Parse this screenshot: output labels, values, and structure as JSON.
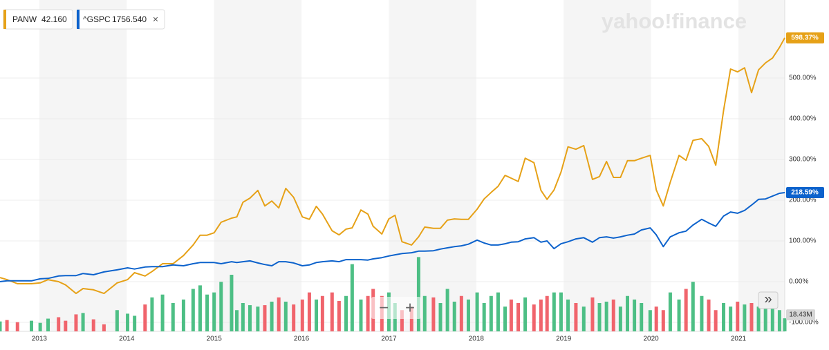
{
  "chart_data": {
    "type": "line",
    "watermark": "yahoo!finance",
    "x": [
      2012.55,
      2012.63,
      2012.75,
      2012.91,
      2013.01,
      2013.1,
      2013.22,
      2013.3,
      2013.42,
      2013.5,
      2013.62,
      2013.74,
      2013.89,
      2014.01,
      2014.09,
      2014.21,
      2014.29,
      2014.41,
      2014.53,
      2014.65,
      2014.76,
      2014.84,
      2014.92,
      2015.0,
      2015.08,
      2015.2,
      2015.26,
      2015.33,
      2015.41,
      2015.5,
      2015.58,
      2015.66,
      2015.74,
      2015.82,
      2015.91,
      2016.01,
      2016.09,
      2016.17,
      2016.24,
      2016.35,
      2016.43,
      2016.51,
      2016.58,
      2016.68,
      2016.76,
      2016.82,
      2016.92,
      2017.0,
      2017.07,
      2017.15,
      2017.26,
      2017.34,
      2017.41,
      2017.51,
      2017.59,
      2017.67,
      2017.75,
      2017.83,
      2017.91,
      2018.01,
      2018.09,
      2018.17,
      2018.25,
      2018.33,
      2018.4,
      2018.48,
      2018.56,
      2018.66,
      2018.74,
      2018.81,
      2018.89,
      2018.97,
      2019.05,
      2019.14,
      2019.23,
      2019.33,
      2019.41,
      2019.49,
      2019.57,
      2019.65,
      2019.73,
      2019.81,
      2019.89,
      2019.99,
      2020.06,
      2020.14,
      2020.22,
      2020.32,
      2020.4,
      2020.48,
      2020.58,
      2020.66,
      2020.74,
      2020.83,
      2020.91,
      2020.99,
      2021.07,
      2021.15,
      2021.23,
      2021.31,
      2021.39,
      2021.47,
      2021.53
    ],
    "series": [
      {
        "name": "PANW",
        "legend_value": "42.160",
        "color": "#e6a117",
        "values": [
          10,
          5,
          -5,
          -5,
          -3,
          5,
          0,
          -8,
          -29,
          -17,
          -20,
          -29,
          -3,
          5,
          22,
          14,
          25,
          44,
          44,
          64,
          90,
          114,
          114,
          120,
          146,
          156,
          159,
          195,
          205,
          224,
          186,
          198,
          181,
          229,
          207,
          159,
          153,
          185,
          166,
          125,
          115,
          129,
          132,
          176,
          166,
          136,
          117,
          154,
          163,
          98,
          90,
          110,
          134,
          131,
          131,
          151,
          154,
          153,
          153,
          178,
          203,
          219,
          234,
          261,
          254,
          246,
          303,
          292,
          224,
          202,
          225,
          269,
          331,
          325,
          334,
          251,
          258,
          295,
          256,
          256,
          297,
          297,
          303,
          310,
          225,
          186,
          244,
          310,
          298,
          347,
          351,
          332,
          286,
          420,
          522,
          515,
          525,
          464,
          520,
          537,
          549,
          575,
          598.37
        ],
        "value_labels": {
          "102": "598.37%"
        }
      },
      {
        "name": "^GSPC",
        "legend_value": "1756.540",
        "color": "#0c62cc",
        "values": [
          0,
          2,
          2,
          2,
          7,
          8,
          14,
          15,
          15,
          20,
          17,
          24,
          29,
          34,
          31,
          36,
          37,
          37,
          41,
          39,
          44,
          47,
          47,
          47,
          44,
          49,
          47,
          49,
          51,
          46,
          42,
          39,
          49,
          49,
          46,
          39,
          41,
          47,
          49,
          51,
          49,
          54,
          54,
          54,
          53,
          56,
          59,
          63,
          66,
          69,
          71,
          75,
          75,
          76,
          80,
          83,
          86,
          88,
          92,
          102,
          95,
          90,
          90,
          93,
          97,
          98,
          105,
          108,
          97,
          100,
          81,
          93,
          98,
          105,
          108,
          97,
          108,
          110,
          107,
          110,
          114,
          117,
          127,
          132,
          115,
          86,
          110,
          120,
          124,
          139,
          153,
          144,
          136,
          161,
          171,
          168,
          175,
          188,
          202,
          203,
          210,
          217,
          218.59
        ],
        "value_labels": {
          "102": "218.59%"
        }
      }
    ],
    "volume": {
      "values": [
        14,
        16,
        13,
        15,
        12,
        18,
        20,
        15,
        24,
        26,
        17,
        10,
        30,
        25,
        22,
        38,
        48,
        52,
        40,
        45,
        60,
        65,
        52,
        55,
        70,
        80,
        30,
        40,
        37,
        35,
        37,
        42,
        48,
        42,
        38,
        45,
        55,
        45,
        50,
        55,
        43,
        50,
        95,
        45,
        50,
        60,
        50,
        55,
        40,
        30,
        35,
        105,
        50,
        48,
        40,
        60,
        42,
        50,
        45,
        55,
        40,
        50,
        55,
        35,
        45,
        40,
        48,
        38,
        45,
        50,
        55,
        55,
        45,
        40,
        35,
        48,
        40,
        42,
        45,
        35,
        50,
        45,
        40,
        30,
        35,
        30,
        55,
        45,
        60,
        70,
        50,
        45,
        30,
        40,
        35,
        42,
        38,
        40,
        35,
        45,
        32,
        30,
        18.43
      ],
      "value_labels": {
        "102": "18.43M"
      },
      "lim": [
        0,
        120
      ],
      "up_color": "#4dbf85",
      "down_color": "#f0646c"
    },
    "xlim": [
      2012.55,
      2021.53
    ],
    "xticks": [
      2013,
      2014,
      2015,
      2016,
      2017,
      2018,
      2019,
      2020,
      2021
    ],
    "ylim": [
      -122,
      683
    ],
    "yticks": [
      {
        "value": -100,
        "label": "-100.00%"
      },
      {
        "value": 0,
        "label": "0.00%"
      },
      {
        "value": 100,
        "label": "100.00%"
      },
      {
        "value": 200,
        "label": "200.00%"
      },
      {
        "value": 300,
        "label": "300.00%"
      },
      {
        "value": 400,
        "label": "400.00%"
      },
      {
        "value": 500,
        "label": "500.00%"
      }
    ],
    "grid": true,
    "shade_alternate_years": true
  },
  "ui": {
    "close": "×",
    "zoom_out": "−",
    "zoom_in": "+",
    "expand": "»"
  }
}
